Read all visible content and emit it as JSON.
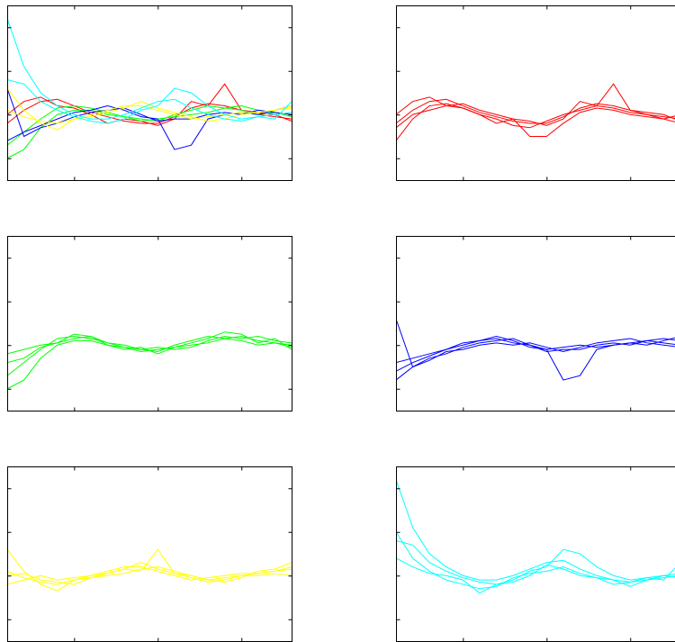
{
  "chart_data": [
    {
      "type": "line",
      "x": [
        1,
        2,
        3,
        4,
        5,
        6,
        7,
        8,
        9,
        10,
        11,
        12,
        13,
        14,
        15,
        16,
        17,
        18
      ],
      "xlim": [
        1,
        18
      ],
      "ylim": [
        -2,
        2
      ],
      "xticks": [
        5,
        10,
        15
      ],
      "yticks": [
        -1.5,
        -0.5,
        0.5,
        1.5
      ],
      "series": [
        {
          "color": "#ff0000",
          "values": [
            -0.7,
            -0.4,
            -0.2,
            -0.15,
            -0.3,
            -0.45,
            -0.55,
            -0.65,
            -0.7,
            -0.7,
            -0.55,
            -0.35,
            -0.25,
            -0.3,
            -0.4,
            -0.5,
            -0.55,
            -0.6
          ]
        },
        {
          "color": "#ff0000",
          "values": [
            -0.5,
            -0.2,
            -0.1,
            -0.3,
            -0.35,
            -0.5,
            -0.7,
            -0.6,
            -0.65,
            -0.75,
            -0.6,
            -0.2,
            -0.3,
            0.2,
            -0.4,
            -0.45,
            -0.5,
            -0.65
          ]
        },
        {
          "color": "#00ff00",
          "values": [
            -1.2,
            -0.9,
            -0.6,
            -0.35,
            -0.3,
            -0.35,
            -0.45,
            -0.55,
            -0.6,
            -0.65,
            -0.5,
            -0.4,
            -0.3,
            -0.35,
            -0.3,
            -0.4,
            -0.45,
            -0.5
          ]
        },
        {
          "color": "#00ff00",
          "values": [
            -1.5,
            -1.3,
            -0.8,
            -0.5,
            -0.4,
            -0.4,
            -0.5,
            -0.55,
            -0.65,
            -0.6,
            -0.55,
            -0.5,
            -0.45,
            -0.35,
            -0.4,
            -0.5,
            -0.45,
            -0.55
          ]
        },
        {
          "color": "#0000ff",
          "values": [
            -1.1,
            -0.9,
            -0.75,
            -0.6,
            -0.45,
            -0.4,
            -0.3,
            -0.4,
            -0.55,
            -0.6,
            -1.3,
            -1.2,
            -0.6,
            -0.5,
            -0.45,
            -0.5,
            -0.4,
            -0.3
          ]
        },
        {
          "color": "#0000ff",
          "values": [
            0.1,
            -1.0,
            -0.8,
            -0.7,
            -0.55,
            -0.45,
            -0.4,
            -0.35,
            -0.5,
            -0.65,
            -0.6,
            -0.6,
            -0.5,
            -0.45,
            -0.5,
            -0.4,
            -0.45,
            -0.5
          ]
        },
        {
          "color": "#ffff00",
          "values": [
            -0.4,
            -0.55,
            -0.65,
            -0.7,
            -0.6,
            -0.5,
            -0.4,
            -0.3,
            -0.3,
            -0.4,
            -0.5,
            -0.6,
            -0.55,
            -0.5,
            -0.45,
            -0.45,
            -0.4,
            -0.35
          ]
        },
        {
          "color": "#ffff00",
          "values": [
            0.1,
            -0.4,
            -0.7,
            -0.85,
            -0.6,
            -0.55,
            -0.45,
            -0.35,
            -0.2,
            -0.35,
            -0.45,
            -0.55,
            -0.65,
            -0.6,
            -0.5,
            -0.45,
            -0.4,
            -0.3
          ]
        },
        {
          "color": "#00ffff",
          "values": [
            1.7,
            0.6,
            0.0,
            -0.3,
            -0.5,
            -0.6,
            -0.6,
            -0.5,
            -0.35,
            -0.2,
            -0.15,
            -0.35,
            -0.5,
            -0.6,
            -0.65,
            -0.55,
            -0.5,
            -0.45
          ]
        },
        {
          "color": "#00ffff",
          "values": [
            0.3,
            0.2,
            -0.2,
            -0.4,
            -0.55,
            -0.65,
            -0.7,
            -0.6,
            -0.4,
            -0.3,
            0.1,
            0.0,
            -0.3,
            -0.5,
            -0.6,
            -0.55,
            -0.6,
            -0.2
          ]
        }
      ]
    },
    {
      "type": "line",
      "x": [
        1,
        2,
        3,
        4,
        5,
        6,
        7,
        8,
        9,
        10,
        11,
        12,
        13,
        14,
        15,
        16,
        17,
        18
      ],
      "xlim": [
        1,
        18
      ],
      "ylim": [
        -2,
        2
      ],
      "xticks": [
        5,
        10,
        15
      ],
      "yticks": [
        -1.5,
        -0.5,
        0.5,
        1.5
      ],
      "series": [
        {
          "color": "#ff0000",
          "values": [
            -0.7,
            -0.4,
            -0.2,
            -0.15,
            -0.3,
            -0.45,
            -0.55,
            -0.65,
            -0.7,
            -0.7,
            -0.55,
            -0.35,
            -0.25,
            -0.3,
            -0.4,
            -0.5,
            -0.55,
            -0.6
          ]
        },
        {
          "color": "#ff0000",
          "values": [
            -1.1,
            -0.6,
            -0.3,
            -0.25,
            -0.35,
            -0.5,
            -0.6,
            -0.75,
            -0.8,
            -0.65,
            -0.5,
            -0.4,
            -0.3,
            -0.35,
            -0.45,
            -0.5,
            -0.6,
            -0.5
          ]
        },
        {
          "color": "#ff0000",
          "values": [
            -0.5,
            -0.2,
            -0.1,
            -0.3,
            -0.35,
            -0.5,
            -0.7,
            -0.6,
            -0.65,
            -0.75,
            -0.6,
            -0.2,
            -0.3,
            0.2,
            -0.4,
            -0.45,
            -0.5,
            -0.65
          ]
        },
        {
          "color": "#ff0000",
          "values": [
            -0.8,
            -0.5,
            -0.4,
            -0.3,
            -0.25,
            -0.4,
            -0.5,
            -0.6,
            -1.0,
            -1.0,
            -0.7,
            -0.45,
            -0.35,
            -0.4,
            -0.5,
            -0.55,
            -0.6,
            -0.7
          ]
        }
      ]
    },
    {
      "type": "line",
      "x": [
        1,
        2,
        3,
        4,
        5,
        6,
        7,
        8,
        9,
        10,
        11,
        12,
        13,
        14,
        15,
        16,
        17,
        18
      ],
      "xlim": [
        1,
        18
      ],
      "ylim": [
        -2,
        2
      ],
      "xticks": [
        5,
        10,
        15
      ],
      "yticks": [
        -1.5,
        -0.5,
        0.5,
        1.5
      ],
      "series": [
        {
          "color": "#00ff00",
          "values": [
            -1.2,
            -0.9,
            -0.6,
            -0.35,
            -0.3,
            -0.35,
            -0.45,
            -0.55,
            -0.6,
            -0.65,
            -0.5,
            -0.4,
            -0.3,
            -0.35,
            -0.3,
            -0.4,
            -0.45,
            -0.5
          ]
        },
        {
          "color": "#00ff00",
          "values": [
            -0.9,
            -0.8,
            -0.55,
            -0.45,
            -0.25,
            -0.3,
            -0.5,
            -0.6,
            -0.55,
            -0.7,
            -0.55,
            -0.45,
            -0.35,
            -0.2,
            -0.25,
            -0.45,
            -0.35,
            -0.6
          ]
        },
        {
          "color": "#00ff00",
          "values": [
            -1.5,
            -1.3,
            -0.8,
            -0.5,
            -0.4,
            -0.4,
            -0.5,
            -0.55,
            -0.65,
            -0.6,
            -0.55,
            -0.5,
            -0.45,
            -0.35,
            -0.4,
            -0.5,
            -0.45,
            -0.55
          ]
        },
        {
          "color": "#00ff00",
          "values": [
            -0.7,
            -0.6,
            -0.5,
            -0.45,
            -0.35,
            -0.3,
            -0.45,
            -0.5,
            -0.6,
            -0.55,
            -0.6,
            -0.55,
            -0.4,
            -0.3,
            -0.35,
            -0.3,
            -0.4,
            -0.45
          ]
        }
      ]
    },
    {
      "type": "line",
      "x": [
        1,
        2,
        3,
        4,
        5,
        6,
        7,
        8,
        9,
        10,
        11,
        12,
        13,
        14,
        15,
        16,
        17,
        18
      ],
      "xlim": [
        1,
        18
      ],
      "ylim": [
        -2,
        2
      ],
      "xticks": [
        5,
        10,
        15
      ],
      "yticks": [
        -1.5,
        -0.5,
        0.5,
        1.5
      ],
      "series": [
        {
          "color": "#0000ff",
          "values": [
            -0.9,
            -0.8,
            -0.7,
            -0.6,
            -0.5,
            -0.4,
            -0.35,
            -0.45,
            -0.5,
            -0.6,
            -0.55,
            -0.5,
            -0.55,
            -0.5,
            -0.45,
            -0.4,
            -0.35,
            -0.4
          ]
        },
        {
          "color": "#0000ff",
          "values": [
            -1.1,
            -0.9,
            -0.75,
            -0.6,
            -0.45,
            -0.4,
            -0.3,
            -0.4,
            -0.55,
            -0.6,
            -1.3,
            -1.2,
            -0.6,
            -0.5,
            -0.45,
            -0.5,
            -0.4,
            -0.3
          ]
        },
        {
          "color": "#0000ff",
          "values": [
            0.1,
            -1.0,
            -0.8,
            -0.7,
            -0.55,
            -0.45,
            -0.4,
            -0.35,
            -0.5,
            -0.65,
            -0.6,
            -0.6,
            -0.5,
            -0.45,
            -0.5,
            -0.4,
            -0.45,
            -0.5
          ]
        },
        {
          "color": "#0000ff",
          "values": [
            -1.3,
            -1.0,
            -0.85,
            -0.65,
            -0.6,
            -0.5,
            -0.45,
            -0.5,
            -0.45,
            -0.55,
            -0.65,
            -0.55,
            -0.45,
            -0.4,
            -0.35,
            -0.45,
            -0.5,
            -0.55
          ]
        }
      ]
    },
    {
      "type": "line",
      "x": [
        1,
        2,
        3,
        4,
        5,
        6,
        7,
        8,
        9,
        10,
        11,
        12,
        13,
        14,
        15,
        16,
        17,
        18
      ],
      "xlim": [
        1,
        18
      ],
      "ylim": [
        -2,
        2
      ],
      "xticks": [
        5,
        10,
        15
      ],
      "yticks": [
        -1.5,
        -0.5,
        0.5,
        1.5
      ],
      "series": [
        {
          "color": "#ffff00",
          "values": [
            -0.4,
            -0.55,
            -0.65,
            -0.7,
            -0.6,
            -0.5,
            -0.4,
            -0.3,
            -0.3,
            -0.4,
            -0.5,
            -0.6,
            -0.55,
            -0.5,
            -0.45,
            -0.45,
            -0.4,
            -0.35
          ]
        },
        {
          "color": "#ffff00",
          "values": [
            0.1,
            -0.4,
            -0.7,
            -0.85,
            -0.6,
            -0.55,
            -0.45,
            -0.35,
            -0.2,
            -0.35,
            -0.45,
            -0.55,
            -0.65,
            -0.6,
            -0.5,
            -0.45,
            -0.4,
            -0.3
          ]
        },
        {
          "color": "#ffff00",
          "values": [
            -0.7,
            -0.6,
            -0.5,
            -0.6,
            -0.55,
            -0.5,
            -0.45,
            -0.35,
            -0.4,
            0.1,
            -0.45,
            -0.5,
            -0.6,
            -0.55,
            -0.5,
            -0.5,
            -0.45,
            -0.5
          ]
        },
        {
          "color": "#ffff00",
          "values": [
            -0.5,
            -0.45,
            -0.6,
            -0.65,
            -0.7,
            -0.55,
            -0.5,
            -0.45,
            -0.35,
            -0.3,
            -0.4,
            -0.5,
            -0.6,
            -0.65,
            -0.55,
            -0.4,
            -0.35,
            -0.2
          ]
        }
      ]
    },
    {
      "type": "line",
      "x": [
        1,
        2,
        3,
        4,
        5,
        6,
        7,
        8,
        9,
        10,
        11,
        12,
        13,
        14,
        15,
        16,
        17,
        18
      ],
      "xlim": [
        1,
        18
      ],
      "ylim": [
        -2,
        2
      ],
      "xticks": [
        5,
        10,
        15
      ],
      "yticks": [
        -1.5,
        -0.5,
        0.5,
        1.5
      ],
      "series": [
        {
          "color": "#00ffff",
          "values": [
            1.7,
            0.6,
            0.0,
            -0.3,
            -0.5,
            -0.6,
            -0.6,
            -0.5,
            -0.35,
            -0.2,
            -0.15,
            -0.35,
            -0.5,
            -0.6,
            -0.65,
            -0.55,
            -0.5,
            -0.45
          ]
        },
        {
          "color": "#00ffff",
          "values": [
            0.3,
            0.2,
            -0.2,
            -0.4,
            -0.55,
            -0.65,
            -0.7,
            -0.6,
            -0.4,
            -0.3,
            0.1,
            0.0,
            -0.3,
            -0.5,
            -0.6,
            -0.55,
            -0.6,
            -0.2
          ]
        },
        {
          "color": "#00ffff",
          "values": [
            0.5,
            -0.1,
            -0.4,
            -0.6,
            -0.7,
            -0.8,
            -0.75,
            -0.55,
            -0.45,
            -0.4,
            -0.3,
            -0.45,
            -0.55,
            -0.7,
            -0.65,
            -0.6,
            -0.55,
            -0.5
          ]
        },
        {
          "color": "#00ffff",
          "values": [
            -0.1,
            -0.3,
            -0.45,
            -0.5,
            -0.6,
            -0.9,
            -0.7,
            -0.65,
            -0.5,
            -0.25,
            -0.35,
            -0.5,
            -0.55,
            -0.6,
            -0.75,
            -0.6,
            -0.5,
            -0.55
          ]
        }
      ]
    }
  ]
}
